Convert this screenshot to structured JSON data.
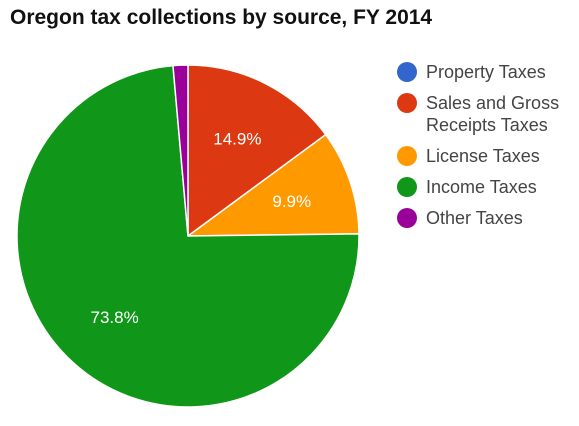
{
  "title": "Oregon tax collections by source, FY 2014",
  "chart_data": {
    "type": "pie",
    "title": "Oregon tax collections by source, FY 2014",
    "legend_position": "right",
    "slices": [
      {
        "name": "Property Taxes",
        "value": 0.0,
        "label": "",
        "color": "#3366cc"
      },
      {
        "name": "Sales and Gross Receipts Taxes",
        "value": 14.9,
        "label": "14.9%",
        "color": "#dc3912"
      },
      {
        "name": "License Taxes",
        "value": 9.9,
        "label": "9.9%",
        "color": "#ff9900"
      },
      {
        "name": "Income Taxes",
        "value": 73.8,
        "label": "73.8%",
        "color": "#109618"
      },
      {
        "name": "Other Taxes",
        "value": 1.4,
        "label": "",
        "color": "#990099"
      }
    ]
  }
}
